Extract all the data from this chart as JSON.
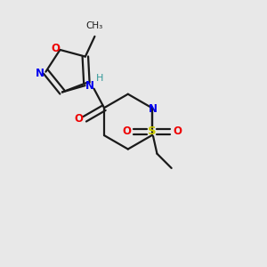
{
  "bg_color": "#e8e8e8",
  "bond_color": "#1a1a1a",
  "N_color": "#0000ee",
  "O_color": "#ee0000",
  "S_color": "#cccc00",
  "H_color": "#339999",
  "lw": 1.6,
  "figsize": [
    3.0,
    3.0
  ],
  "dpi": 100,
  "xlim": [
    0,
    10
  ],
  "ylim": [
    0,
    10
  ]
}
